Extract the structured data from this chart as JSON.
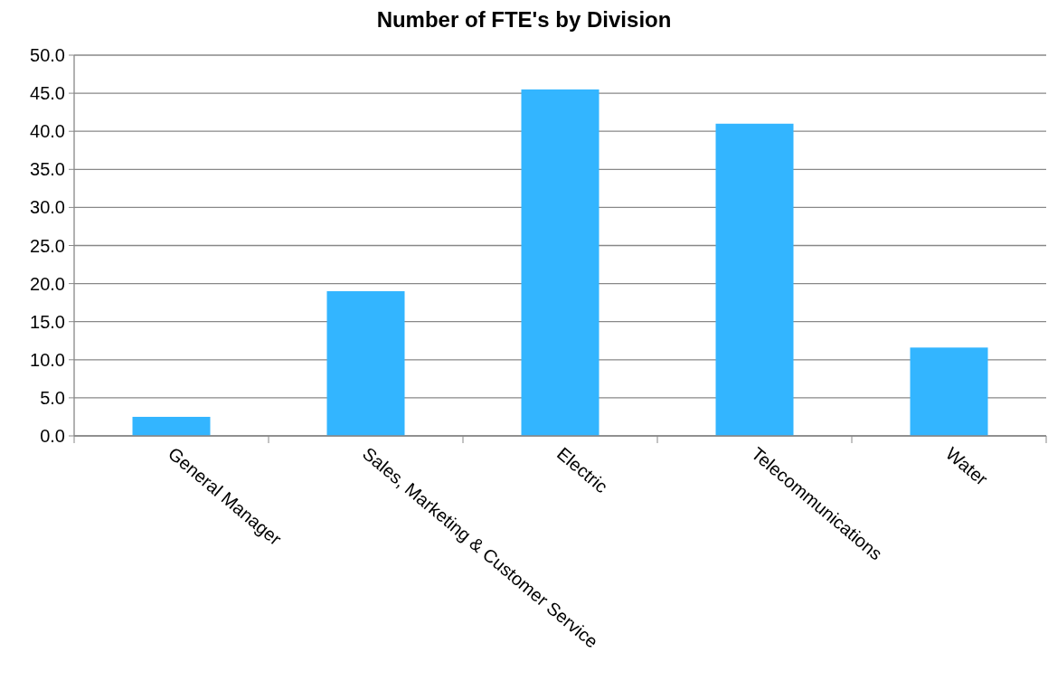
{
  "chart_data": {
    "type": "bar",
    "title": "Number of FTE's by Division",
    "categories": [
      "General Manager",
      "Sales, Marketing & Customer Service",
      "Electric",
      "Telecommunications",
      "Water"
    ],
    "values": [
      2.5,
      19.0,
      45.5,
      41.0,
      11.6
    ],
    "color": "#33b5ff",
    "ylim": [
      0,
      50
    ],
    "yticks": [
      {
        "value": 0,
        "label": "0.0"
      },
      {
        "value": 5,
        "label": "5.0"
      },
      {
        "value": 10,
        "label": "10.0"
      },
      {
        "value": 15,
        "label": "15.0"
      },
      {
        "value": 20,
        "label": "20.0"
      },
      {
        "value": 25,
        "label": "25.0"
      },
      {
        "value": 30,
        "label": "30.0"
      },
      {
        "value": 35,
        "label": "35.0"
      },
      {
        "value": 40,
        "label": "40.0"
      },
      {
        "value": 45,
        "label": "45.0"
      },
      {
        "value": 50,
        "label": "50.0"
      }
    ],
    "grid": "y"
  }
}
